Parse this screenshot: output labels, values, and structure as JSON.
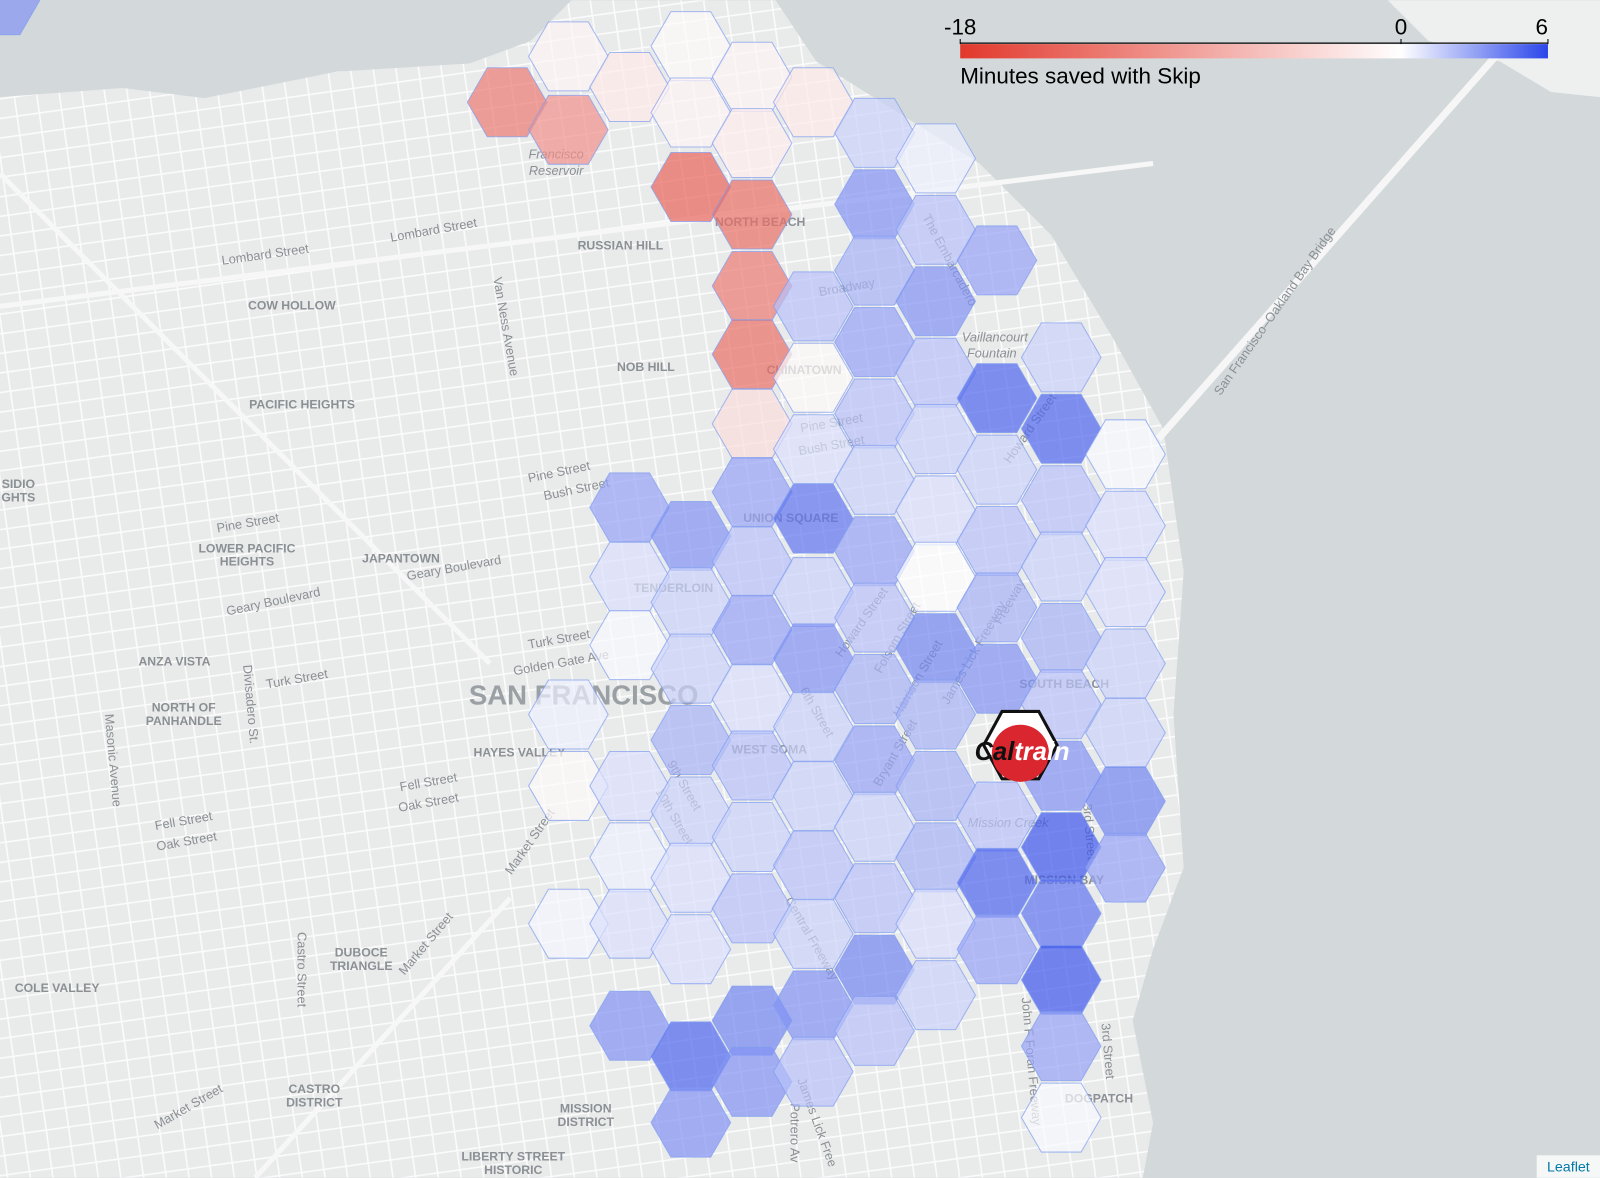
{
  "legend": {
    "title": "Minutes saved with Skip",
    "min": -18,
    "max": 6,
    "ticks": [
      -18,
      0,
      6
    ],
    "low_color": "#e2382c",
    "mid_color": "#ffffff",
    "high_color": "#2b46ea"
  },
  "hex_layer": {
    "opacity": 0.7,
    "stroke": "#7f9cf0",
    "values": [
      -12,
      -1,
      -10,
      0.5,
      -0.5,
      0.3,
      -2,
      3,
      1,
      0.2,
      1,
      0.5,
      1,
      3.5,
      -0.5,
      -1,
      -14,
      3.5,
      1.5,
      1.5,
      2.5,
      1.5,
      1,
      1,
      5,
      3.5,
      -1,
      -1.5,
      -13,
      -12,
      -13,
      -3,
      3,
      2,
      3,
      1,
      2,
      1.5,
      2,
      4,
      3.5,
      -2,
      2,
      -0.5,
      1,
      4.5,
      1.5,
      3.5,
      1.5,
      1.5,
      2,
      1.5,
      3.5,
      2,
      1.5,
      3.5,
      2.5,
      3,
      2,
      1.5,
      3,
      2,
      2.5,
      3,
      1.5,
      2,
      4,
      2,
      0.5,
      2,
      3.5,
      2,
      1.5,
      1,
      0,
      4,
      2.5,
      2.5,
      2.5,
      1,
      1.5,
      3,
      5,
      1.5,
      2,
      2.5,
      3.5,
      2,
      5,
      3,
      1.5,
      5,
      2,
      1.5,
      2.5,
      2,
      3.5,
      5.5,
      4.5,
      5.5,
      3,
      0.2,
      0.2,
      1,
      1,
      1.5,
      1.5,
      4,
      3,
      3.5
    ]
  },
  "map_labels": [
    "Francisco",
    "Reservoir",
    "NORTH BEACH",
    "RUSSIAN HILL",
    "Lombard Street",
    "Lombard Street",
    "COW HOLLOW",
    "Van Ness Avenue",
    "Broadway",
    "The Embarcadero",
    "Vaillancourt",
    "Fountain",
    "NOB HILL",
    "CHINATOWN",
    "PACIFIC HEIGHTS",
    "San Francisco–Oakland Bay Bridge",
    "Pine Street",
    "Bush Street",
    "Howard Street",
    "Pine Street",
    "Bush Street",
    "SIDIO",
    "GHTS",
    "UNION SQUARE",
    "Pine Street",
    "LOWER PACIFIC",
    "HEIGHTS",
    "JAPANTOWN",
    "Geary Boulevard",
    "TENDERLOIN",
    "Geary Boulevard",
    "Turk Street",
    "Golden Gate Ave",
    "ANZA VISTA",
    "Divisadero St.",
    "Turk Street",
    "Howard Street",
    "Folsom Street",
    "Harrison Street",
    "James Lick Freeway",
    "Freeway",
    "SAN FRANCISCO",
    "SOUTH BEACH",
    "NORTH OF",
    "PANHANDLE",
    "Masonic Avenue",
    "HAYES VALLEY",
    "WEST SOMA",
    "6th Street",
    "Bryant Street",
    "Fell Street",
    "Oak Street",
    "9th Street",
    "10th Street",
    "Market Street",
    "Mission Creek",
    "3rd Street",
    "Fell Street",
    "Oak Street",
    "MISSION BAY",
    "Central Freeway",
    "Market Street",
    "DUBOCE",
    "TRIANGLE",
    "Castro Street",
    "COLE VALLEY",
    "John F Foran Freeway",
    "3rd Street",
    "DOGPATCH",
    "Market Street",
    "CASTRO",
    "DISTRICT",
    "MISSION",
    "DISTRICT",
    "Potrero Av",
    "James Lick Free",
    "LIBERTY STREET",
    "HISTORIC"
  ],
  "logo": {
    "part1": "Cal",
    "part2": "train"
  },
  "attribution": "Leaflet"
}
